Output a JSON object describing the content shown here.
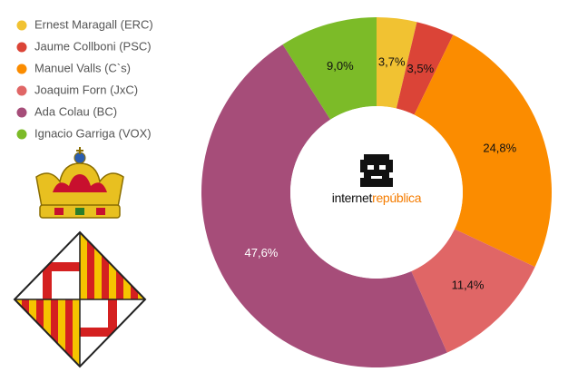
{
  "chart_data": {
    "type": "donut",
    "categories": [
      "Ernest Maragall (ERC)",
      "Jaume Collboni (PSC)",
      "Manuel Valls (C`s)",
      "Joaquim Forn (JxC)",
      "Ada Colau (BC)",
      "Ignacio Garriga (VOX)"
    ],
    "values": [
      3.7,
      3.5,
      24.8,
      11.4,
      47.6,
      9.0
    ],
    "value_labels": [
      "3,7%",
      "3,5%",
      "24,8%",
      "11,4%",
      "47,6%",
      "9,0%"
    ],
    "colors": [
      "#f1c232",
      "#db4437",
      "#fb8c00",
      "#e06666",
      "#a64d79",
      "#7cbb28"
    ]
  },
  "logo": {
    "first": "internet",
    "second": "república"
  }
}
